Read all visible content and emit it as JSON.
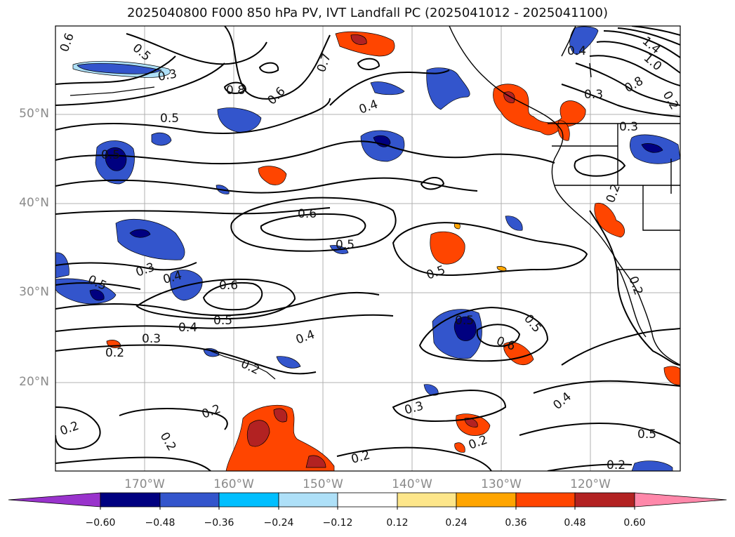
{
  "title": "2025040800 F000 850 hPa PV, IVT Landfall PC (2025041012 - 2025041100)",
  "axes": {
    "lat_labels": [
      "50°N",
      "40°N",
      "30°N",
      "20°N"
    ],
    "lon_labels": [
      "170°W",
      "160°W",
      "150°W",
      "140°W",
      "130°W",
      "120°W"
    ]
  },
  "colorbar": {
    "ticks": [
      "−0.60",
      "−0.48",
      "−0.36",
      "−0.24",
      "−0.12",
      "0.12",
      "0.24",
      "0.36",
      "0.48",
      "0.60"
    ],
    "colors": [
      "#9933cc",
      "#000080",
      "#3355cc",
      "#00bfff",
      "#aee0f8",
      "#ffffff",
      "#fde68a",
      "#ffa500",
      "#ff4500",
      "#b22222",
      "#ff88aa"
    ]
  },
  "contour_labels": [
    "0.6",
    "0.5",
    "0.7",
    "0.8",
    "0.6",
    "0.4",
    "1.4",
    "1.0",
    "0.8",
    "0.4",
    "0.3",
    "0.5",
    "0.3",
    "0.5",
    "0.6",
    "0.5",
    "0.3",
    "0.4",
    "0.6",
    "0.5",
    "0.4",
    "0.5",
    "0.3",
    "0.4",
    "0.2",
    "0.2",
    "0.2",
    "0.2",
    "0.2",
    "0.5",
    "0.6",
    "0.5",
    "0.3",
    "0.4",
    "0.5",
    "0.2",
    "0.2",
    "0.2",
    "0.2",
    "0.2",
    "0.5",
    "0.2",
    "0.3"
  ]
}
